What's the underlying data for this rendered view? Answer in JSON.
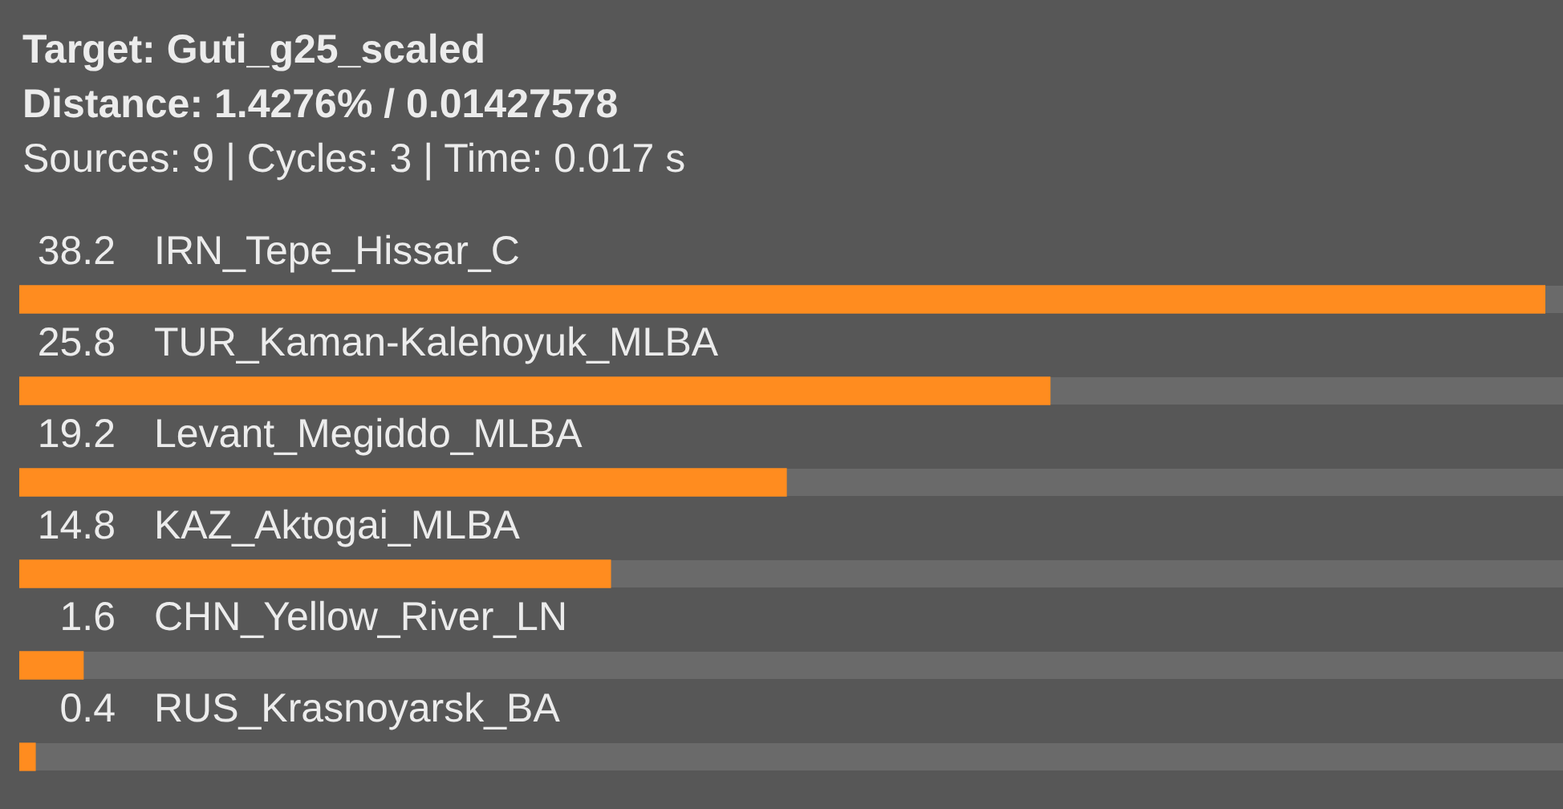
{
  "chart_data": {
    "type": "bar",
    "orientation": "horizontal",
    "title": "Target: Guti_g25_scaled",
    "subtitle": "Distance: 1.4276% / 0.01427578",
    "annotations": [
      "Sources: 9 | Cycles: 3 | Time: 0.017 s"
    ],
    "categories": [
      "IRN_Tepe_Hissar_C",
      "TUR_Kaman-Kalehoyuk_MLBA",
      "Levant_Megiddo_MLBA",
      "KAZ_Aktogai_MLBA",
      "CHN_Yellow_River_LN",
      "RUS_Krasnoyarsk_BA"
    ],
    "values": [
      38.2,
      25.8,
      19.2,
      14.8,
      1.6,
      0.4
    ],
    "color": "#ff8c1f",
    "data_labels": true
  }
}
